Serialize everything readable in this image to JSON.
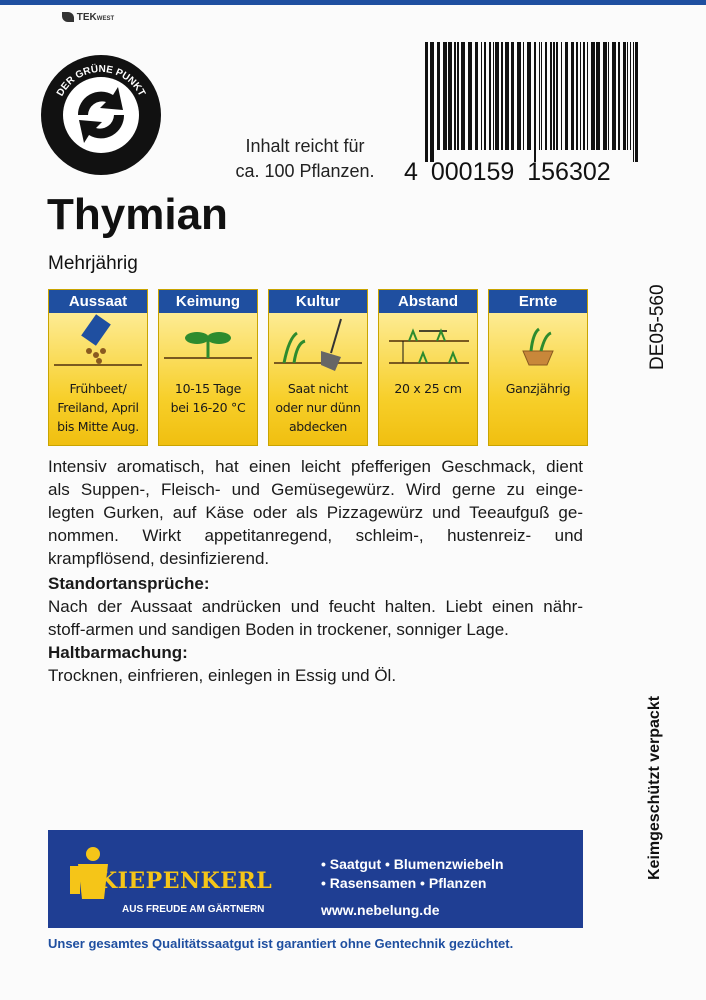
{
  "header": {
    "brand": "TEK",
    "brand_suffix": "WEST",
    "logo_text": "DER GRÜNE PUNKT"
  },
  "content_note": [
    "Inhalt reicht für",
    "ca. 100 Pflanzen."
  ],
  "barcode": [
    "4",
    "000159",
    "156302"
  ],
  "title": "Thymian",
  "subtitle": "Mehrjährig",
  "cards": [
    {
      "label": "Aussaat",
      "lines": [
        "Frühbeet/",
        "Freiland, April",
        "bis Mitte Aug."
      ]
    },
    {
      "label": "Keimung",
      "lines": [
        "10-15 Tage",
        "bei 16-20 °C"
      ]
    },
    {
      "label": "Kultur",
      "lines": [
        "Saat nicht",
        "oder nur dünn",
        "abdecken"
      ]
    },
    {
      "label": "Abstand",
      "lines": [
        "20 x 25 cm"
      ]
    },
    {
      "label": "Ernte",
      "lines": [
        "Ganzjährig"
      ]
    }
  ],
  "side_code": "DE05-560",
  "description": [
    "Intensiv aromatisch, hat einen leicht pfefferigen Geschmack, dient",
    "als Suppen-, Fleisch- und Gemüsegewürz. Wird gerne zu einge-",
    "legten Gurken, auf Käse oder als Pizzagewürz und Teeaufguß ge-",
    "nommen. Wirkt appetitanregend, schleim-, hustenreiz- und",
    "krampflösend, desinfizierend."
  ],
  "sections": [
    {
      "heading": "Standortansprüche:",
      "lines": [
        "Nach der Aussaat andrücken und feucht halten. Liebt einen nähr-",
        "stoff-armen und sandigen Boden in trockener, sonniger Lage."
      ]
    },
    {
      "heading": "Haltbarmachung:",
      "lines": [
        "Trocknen, einfrieren, einlegen in Essig und Öl."
      ]
    }
  ],
  "side_note": "Keimgeschützt verpackt",
  "banner": {
    "brand": "KIEPENKERL",
    "slogan": "AUS FREUDE AM GÄRTNERN",
    "products": [
      "• Saatgut • Blumenzwiebeln",
      "• Rasensamen • Pflanzen"
    ],
    "url": "www.nebelung.de"
  },
  "footer_note": "Unser gesamtes Qualitätssaatgut ist garantiert ohne Gentechnik gezüchtet."
}
